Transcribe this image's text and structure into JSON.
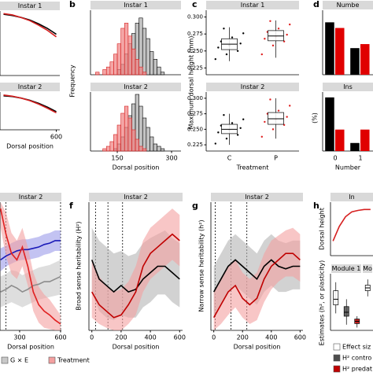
{
  "chart_data": [
    {
      "type": "line",
      "title": "Instar 1",
      "x": [
        300,
        350,
        400,
        450,
        500,
        550,
        600
      ],
      "xlim": [
        280,
        620
      ],
      "ylim": [
        0,
        1
      ],
      "series": [
        {
          "color": "#000000",
          "values": [
            0.95,
            0.93,
            0.9,
            0.86,
            0.8,
            0.73,
            0.64
          ]
        },
        {
          "color": "#d62020",
          "values": [
            0.96,
            0.94,
            0.9,
            0.85,
            0.78,
            0.7,
            0.6
          ]
        }
      ]
    },
    {
      "type": "line",
      "title": "Instar 2",
      "x": [
        300,
        350,
        400,
        450,
        500,
        550,
        600
      ],
      "xlim": [
        280,
        620
      ],
      "ylim": [
        0,
        1
      ],
      "xticks": [
        600
      ],
      "x_label": "Dorsal position",
      "series": [
        {
          "color": "#000000",
          "values": [
            0.9,
            0.88,
            0.84,
            0.78,
            0.7,
            0.6,
            0.48
          ]
        },
        {
          "color": "#d62020",
          "values": [
            0.92,
            0.89,
            0.84,
            0.77,
            0.68,
            0.57,
            0.45
          ]
        }
      ]
    },
    {
      "type": "histogram",
      "panel": "b",
      "title": "Instar 1",
      "y_label": "Frequency",
      "xlim": [
        76,
        326
      ],
      "ylim": [
        0,
        25
      ],
      "bins": [
        90,
        100,
        110,
        120,
        130,
        140,
        150,
        160,
        170,
        180,
        190,
        200,
        210,
        220,
        230,
        240,
        250,
        260,
        270,
        280,
        290,
        300
      ],
      "series": [
        {
          "color": "#bdbdbd",
          "edge": "#000000",
          "values": [
            0,
            0,
            0,
            0,
            0,
            0,
            2,
            4,
            8,
            12,
            16,
            20,
            22,
            18,
            14,
            9,
            6,
            3,
            1,
            0,
            0
          ]
        },
        {
          "color": "#f08080",
          "edge": "#d62020",
          "values": [
            1,
            0,
            2,
            3,
            5,
            8,
            12,
            18,
            20,
            15,
            10,
            6,
            3,
            1,
            0,
            0,
            0,
            0,
            0,
            0,
            0
          ]
        }
      ]
    },
    {
      "type": "histogram",
      "title": "Instar 2",
      "x_label": "Dorsal position",
      "xlim": [
        76,
        326
      ],
      "ylim": [
        0,
        25
      ],
      "xticks": [
        150,
        300
      ],
      "bins": [
        90,
        100,
        110,
        120,
        130,
        140,
        150,
        160,
        170,
        180,
        190,
        200,
        210,
        220,
        230,
        240,
        250,
        260,
        270,
        280,
        290,
        300
      ],
      "series": [
        {
          "color": "#bdbdbd",
          "edge": "#000000",
          "values": [
            0,
            0,
            0,
            0,
            0,
            1,
            3,
            6,
            10,
            15,
            20,
            24,
            19,
            14,
            10,
            6,
            3,
            2,
            1,
            0,
            0
          ]
        },
        {
          "color": "#f08080",
          "edge": "#d62020",
          "values": [
            0,
            0,
            1,
            2,
            4,
            7,
            11,
            16,
            19,
            14,
            9,
            5,
            2,
            1,
            0,
            0,
            0,
            0,
            0,
            0,
            0
          ]
        }
      ]
    },
    {
      "type": "box",
      "panel": "c",
      "title": "Instar 1",
      "y_label": "Maximum dorsal height (mm)",
      "ylim": [
        0.215,
        0.31
      ],
      "yticks": [
        0.225,
        {
          "value": 0.25,
          "label": "0.250"
        },
        0.275,
        {
          "value": 0.3,
          "label": "0.300"
        }
      ],
      "boxes": [
        {
          "color": "#000000",
          "low": 0.235,
          "q1": 0.252,
          "median": 0.26,
          "q3": 0.268,
          "high": 0.285,
          "points": [
            0.238,
            0.245,
            0.25,
            0.255,
            0.258,
            0.261,
            0.264,
            0.27,
            0.276,
            0.283
          ]
        },
        {
          "color": "#e02020",
          "low": 0.24,
          "q1": 0.265,
          "median": 0.272,
          "q3": 0.28,
          "high": 0.295,
          "points": [
            0.245,
            0.258,
            0.264,
            0.268,
            0.271,
            0.274,
            0.278,
            0.283,
            0.289,
            0.294
          ]
        }
      ]
    },
    {
      "type": "box",
      "title": "Instar 2",
      "x_label": "Treatment",
      "ylim": [
        0.215,
        0.31
      ],
      "categories": [
        "C",
        "P"
      ],
      "yticks": [
        0.225,
        {
          "value": 0.25,
          "label": "0.250"
        },
        0.275,
        {
          "value": 0.3,
          "label": "0.300"
        }
      ],
      "boxes": [
        {
          "color": "#000000",
          "low": 0.225,
          "q1": 0.243,
          "median": 0.25,
          "q3": 0.258,
          "high": 0.275,
          "points": [
            0.227,
            0.235,
            0.241,
            0.245,
            0.249,
            0.252,
            0.256,
            0.26,
            0.266,
            0.273
          ]
        },
        {
          "color": "#e02020",
          "low": 0.235,
          "q1": 0.258,
          "median": 0.267,
          "q3": 0.277,
          "high": 0.3,
          "points": [
            0.238,
            0.25,
            0.257,
            0.262,
            0.266,
            0.27,
            0.275,
            0.28,
            0.288,
            0.298
          ]
        }
      ]
    },
    {
      "type": "bar",
      "panel": "d",
      "title": "Numbe",
      "ylim": [
        0,
        80
      ],
      "series": [
        {
          "color": "#000000",
          "values": [
            65,
            33
          ]
        },
        {
          "color": "#e00000",
          "values": [
            58,
            38
          ]
        }
      ]
    },
    {
      "type": "bar",
      "title": "Ins",
      "y_label": "(%)",
      "x_label": "Number",
      "ylim": [
        0,
        110
      ],
      "categories": [
        "0",
        "1"
      ],
      "series": [
        {
          "color": "#000000",
          "values": [
            100,
            15
          ]
        },
        {
          "color": "#e00000",
          "values": [
            40,
            40
          ]
        }
      ]
    },
    {
      "type": "line",
      "title": "Instar 2",
      "x_label": "Dorsal position",
      "xlim": [
        156,
        606
      ],
      "ylim": [
        0,
        1
      ],
      "xticks": [
        300,
        600
      ],
      "vlines": [
        200,
        600
      ],
      "x": [
        160,
        200,
        240,
        280,
        320,
        360,
        400,
        440,
        480,
        520,
        560,
        600
      ],
      "series": [
        {
          "color": "#8c8c8c",
          "band": "#c8c8c8",
          "name": "G × E",
          "values": [
            0.3,
            0.32,
            0.35,
            0.33,
            0.3,
            0.32,
            0.35,
            0.36,
            0.38,
            0.38,
            0.4,
            0.42
          ],
          "lower": [
            0.18,
            0.2,
            0.22,
            0.2,
            0.18,
            0.2,
            0.22,
            0.24,
            0.25,
            0.26,
            0.27,
            0.28
          ],
          "upper": [
            0.42,
            0.44,
            0.47,
            0.46,
            0.43,
            0.45,
            0.47,
            0.49,
            0.5,
            0.51,
            0.53,
            0.55
          ]
        },
        {
          "color": "#1a1ab8",
          "band": "#9b9bea",
          "values": [
            0.55,
            0.58,
            0.6,
            0.62,
            0.63,
            0.63,
            0.64,
            0.65,
            0.67,
            0.68,
            0.7,
            0.7
          ],
          "lower": [
            0.46,
            0.5,
            0.52,
            0.54,
            0.55,
            0.55,
            0.56,
            0.57,
            0.59,
            0.6,
            0.62,
            0.62
          ],
          "upper": [
            0.64,
            0.66,
            0.68,
            0.7,
            0.71,
            0.71,
            0.72,
            0.73,
            0.75,
            0.76,
            0.78,
            0.78
          ]
        },
        {
          "color": "#e02020",
          "band": "#f4a0a0",
          "name": "Treatment",
          "values": [
            0.95,
            0.75,
            0.6,
            0.55,
            0.65,
            0.5,
            0.3,
            0.2,
            0.15,
            0.12,
            0.08,
            0.05
          ],
          "lower": [
            0.8,
            0.58,
            0.44,
            0.4,
            0.5,
            0.35,
            0.15,
            0.06,
            0.02,
            0.01,
            0,
            0
          ],
          "upper": [
            1,
            0.92,
            0.76,
            0.7,
            0.8,
            0.65,
            0.45,
            0.34,
            0.28,
            0.24,
            0.18,
            0.12
          ]
        }
      ]
    },
    {
      "type": "line",
      "panel": "f",
      "title": "Instar 2",
      "y_label": "Broad sense heritability (H²)",
      "x_label": "Dorsal position",
      "xlim": [
        -20,
        620
      ],
      "ylim": [
        0,
        1
      ],
      "xticks": [
        0,
        200,
        400,
        600
      ],
      "vlines": [
        25,
        110,
        210
      ],
      "x": [
        0,
        50,
        100,
        150,
        200,
        250,
        300,
        350,
        400,
        450,
        500,
        550,
        600
      ],
      "series": [
        {
          "color": "#000000",
          "band": "#b4b4b4",
          "values": [
            0.55,
            0.4,
            0.35,
            0.3,
            0.35,
            0.3,
            0.32,
            0.4,
            0.45,
            0.5,
            0.5,
            0.45,
            0.4
          ],
          "lower": [
            0.3,
            0.15,
            0.1,
            0.08,
            0.12,
            0.1,
            0.1,
            0.18,
            0.22,
            0.28,
            0.28,
            0.22,
            0.18
          ],
          "upper": [
            0.8,
            0.7,
            0.65,
            0.6,
            0.62,
            0.58,
            0.6,
            0.68,
            0.72,
            0.75,
            0.78,
            0.72,
            0.68
          ]
        },
        {
          "color": "#c00000",
          "band": "#f4a0a0",
          "values": [
            0.3,
            0.2,
            0.15,
            0.1,
            0.12,
            0.2,
            0.3,
            0.5,
            0.6,
            0.65,
            0.7,
            0.75,
            0.7
          ],
          "lower": [
            0.1,
            0.05,
            0.02,
            0,
            0,
            0.05,
            0.12,
            0.3,
            0.4,
            0.45,
            0.5,
            0.55,
            0.5
          ],
          "upper": [
            0.55,
            0.42,
            0.35,
            0.3,
            0.32,
            0.38,
            0.5,
            0.7,
            0.8,
            0.85,
            0.9,
            0.95,
            0.9
          ]
        }
      ]
    },
    {
      "type": "line",
      "panel": "g",
      "title": "Instar 2",
      "y_label": "Narrow sense heritability (h²)",
      "x_label": "Dorsal position",
      "xlim": [
        -20,
        620
      ],
      "ylim": [
        0,
        1
      ],
      "xticks": [
        0,
        200,
        400,
        600
      ],
      "vlines": [
        10,
        120,
        230
      ],
      "x": [
        0,
        50,
        100,
        150,
        200,
        250,
        300,
        350,
        400,
        450,
        500,
        550,
        600
      ],
      "series": [
        {
          "color": "#000000",
          "band": "#b4b4b4",
          "values": [
            0.3,
            0.4,
            0.5,
            0.55,
            0.5,
            0.45,
            0.4,
            0.5,
            0.55,
            0.5,
            0.48,
            0.5,
            0.5
          ],
          "lower": [
            0.1,
            0.2,
            0.3,
            0.35,
            0.3,
            0.25,
            0.2,
            0.3,
            0.35,
            0.3,
            0.3,
            0.32,
            0.32
          ],
          "upper": [
            0.5,
            0.6,
            0.7,
            0.75,
            0.7,
            0.65,
            0.6,
            0.7,
            0.75,
            0.7,
            0.68,
            0.7,
            0.7
          ]
        },
        {
          "color": "#c00000",
          "band": "#f4a0a0",
          "values": [
            0.1,
            0.2,
            0.3,
            0.35,
            0.25,
            0.2,
            0.25,
            0.4,
            0.5,
            0.55,
            0.6,
            0.6,
            0.55
          ],
          "lower": [
            0,
            0.05,
            0.12,
            0.18,
            0.1,
            0.05,
            0.08,
            0.22,
            0.32,
            0.38,
            0.42,
            0.42,
            0.38
          ],
          "upper": [
            0.3,
            0.4,
            0.5,
            0.55,
            0.45,
            0.4,
            0.45,
            0.6,
            0.7,
            0.74,
            0.78,
            0.8,
            0.75
          ]
        }
      ]
    },
    {
      "type": "line",
      "panel": "h",
      "title": "In",
      "y_label": "Dorsal height",
      "xlim": [
        -20,
        320
      ],
      "ylim": [
        0,
        1.1
      ],
      "x": [
        0,
        50,
        100,
        150,
        200,
        250,
        300
      ],
      "series": [
        {
          "color": "#d62020",
          "values": [
            0.3,
            0.6,
            0.8,
            0.9,
            0.93,
            0.95,
            0.95
          ]
        }
      ]
    },
    {
      "type": "box",
      "titles": [
        "Module 1",
        "Mo"
      ],
      "y_label": "Estimates (h², or plasticity)",
      "ylim": [
        0,
        1
      ],
      "series": [
        {
          "name": "Effect siz",
          "color": "#ffffff"
        },
        {
          "name": "H² contro",
          "color": "#4d4d4d"
        },
        {
          "name": "H² predat",
          "color": "#c00000"
        }
      ],
      "boxes": [
        {
          "series": 0,
          "low": 0.3,
          "q1": 0.45,
          "median": 0.55,
          "q3": 0.7,
          "high": 0.85
        },
        {
          "series": 1,
          "low": 0.1,
          "q1": 0.25,
          "median": 0.32,
          "q3": 0.42,
          "high": 0.55
        },
        {
          "series": 2,
          "low": 0.05,
          "q1": 0.12,
          "median": 0.16,
          "q3": 0.2,
          "high": 0.25
        },
        {
          "series": 0,
          "low": 0.6,
          "q1": 0.7,
          "median": 0.75,
          "q3": 0.8,
          "high": 0.9
        }
      ]
    }
  ]
}
